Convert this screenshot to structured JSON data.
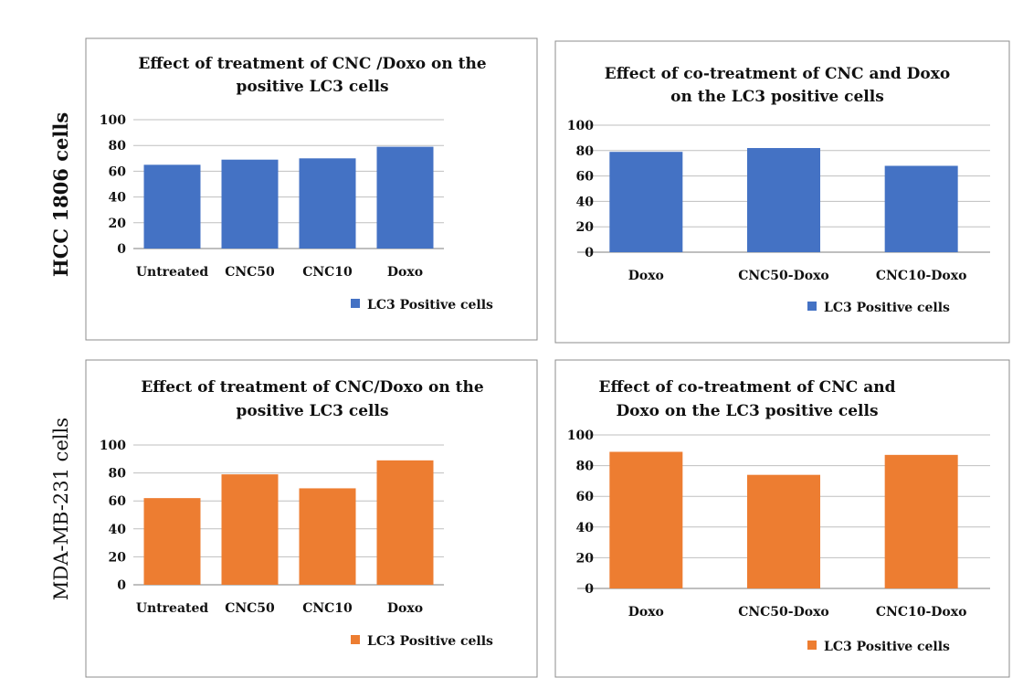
{
  "row_labels": [
    "HCC 1806 cells",
    "MDA-MB-231 cells"
  ],
  "colors": {
    "blue": "#4472C4",
    "orange": "#ED7D31",
    "grid": "#BFBFBF",
    "frame": "#8C8C8C"
  },
  "chart_data": [
    {
      "type": "bar",
      "title_lines": [
        "Effect of treatment of CNC /Doxo on the",
        "positive LC3 cells"
      ],
      "categories": [
        "Untreated",
        "CNC50",
        "CNC10",
        "Doxo"
      ],
      "series": [
        {
          "name": "LC3 Positive cells",
          "values": [
            65,
            69,
            70,
            79
          ]
        }
      ],
      "ylim": [
        0,
        100
      ],
      "yticks": [
        0,
        20,
        40,
        60,
        80,
        100
      ],
      "color": "#4472C4",
      "grid": true,
      "legend": "bottom"
    },
    {
      "type": "bar",
      "title_lines": [
        "Effect of co-treatment of CNC and Doxo",
        "on the  LC3 positive cells"
      ],
      "categories": [
        "Doxo",
        "CNC50-Doxo",
        "CNC10-Doxo"
      ],
      "series": [
        {
          "name": "LC3 Positive  cells",
          "values": [
            79,
            82,
            68
          ]
        }
      ],
      "ylim": [
        0,
        100
      ],
      "yticks": [
        0,
        20,
        40,
        60,
        80,
        100
      ],
      "color": "#4472C4",
      "grid": true,
      "legend": "bottom"
    },
    {
      "type": "bar",
      "title_lines": [
        "Effect of treatment of CNC/Doxo on the",
        "positive LC3 cells"
      ],
      "categories": [
        "Untreated",
        "CNC50",
        "CNC10",
        "Doxo"
      ],
      "series": [
        {
          "name": "LC3 Positive cells",
          "values": [
            62,
            79,
            69,
            89
          ]
        }
      ],
      "ylim": [
        0,
        100
      ],
      "yticks": [
        0,
        20,
        40,
        60,
        80,
        100
      ],
      "color": "#ED7D31",
      "grid": true,
      "legend": "bottom"
    },
    {
      "type": "bar",
      "title_lines": [
        "Effect of co-treatment of CNC and",
        "Doxo on the  LC3 positive cells"
      ],
      "categories": [
        "Doxo",
        "CNC50-Doxo",
        "CNC10-Doxo"
      ],
      "series": [
        {
          "name": "LC3 Positive cells",
          "values": [
            89,
            74,
            87
          ]
        }
      ],
      "ylim": [
        0,
        100
      ],
      "yticks": [
        0,
        20,
        40,
        60,
        80,
        100
      ],
      "color": "#ED7D31",
      "grid": true,
      "legend": "bottom"
    }
  ]
}
